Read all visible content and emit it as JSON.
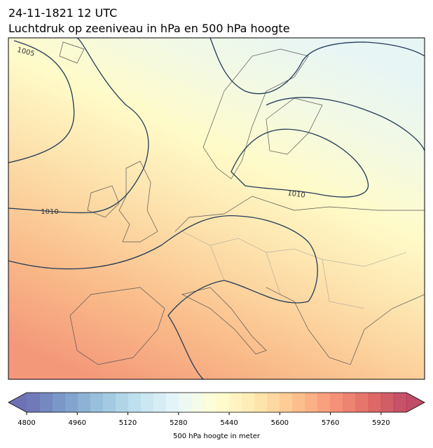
{
  "header": {
    "title": "24-11-1821 12 UTC",
    "subtitle": "Luchtdruk op zeeniveau in hPa en 500 hPa hoogte"
  },
  "contour_labels": [
    "1005",
    "1010",
    "1010"
  ],
  "colorbar": {
    "label": "500 hPa hoogte in meter",
    "range": [
      4800,
      6000
    ],
    "step": 40,
    "ticks": [
      4800,
      4960,
      5120,
      5280,
      5440,
      5600,
      5760,
      5920
    ],
    "cmap": [
      "#313695",
      "#4575b4",
      "#74add1",
      "#abd9e9",
      "#e0f3f8",
      "#ffffbf",
      "#fee090",
      "#fdae61",
      "#f46d43",
      "#d73027",
      "#a50026"
    ],
    "opacity": 0.7
  }
}
